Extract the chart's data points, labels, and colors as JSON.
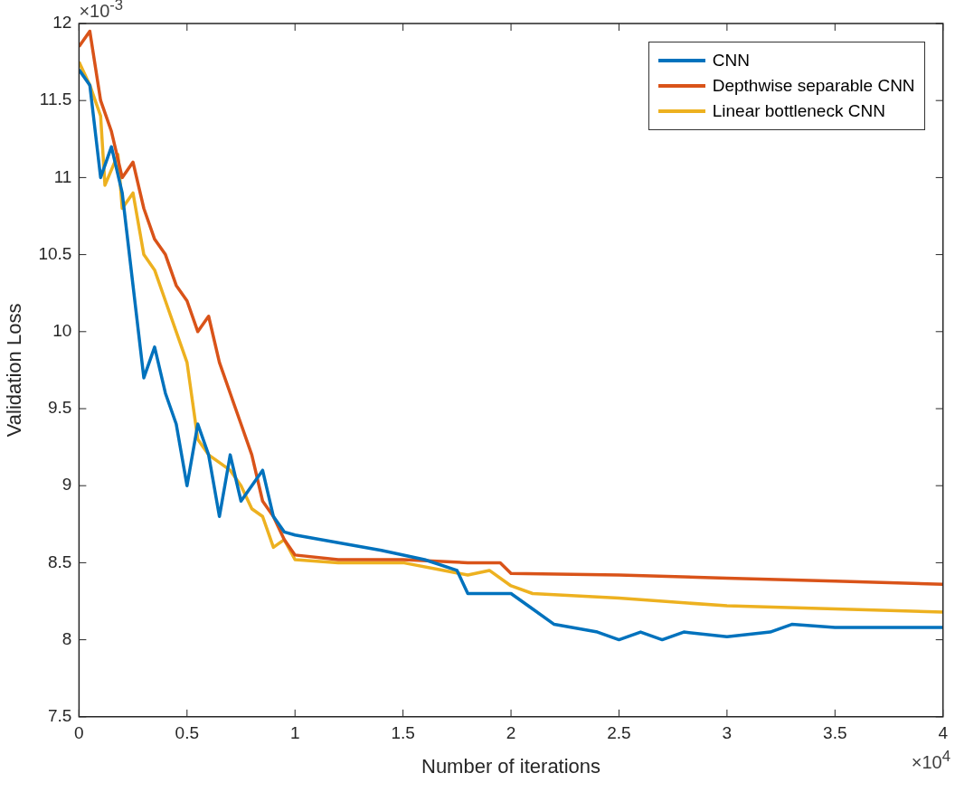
{
  "chart_data": {
    "type": "line",
    "xlabel": "Number of iterations",
    "ylabel": "Validation Loss",
    "annotations": [
      "×10$^{-3}$",
      "×10$^{4}$"
    ],
    "xlim": [
      0,
      4
    ],
    "xticks": [
      0,
      0.5,
      1,
      1.5,
      2,
      2.5,
      3,
      3.5,
      4
    ],
    "ylim": [
      7.5,
      12
    ],
    "yticks": [
      7.5,
      8,
      8.5,
      9,
      9.5,
      10,
      10.5,
      11,
      11.5,
      12
    ],
    "grid": false,
    "legend": "top right",
    "marker": "none",
    "line_style": "solid",
    "series": [
      {
        "name": "CNN",
        "color": "#0072bd",
        "x": [
          0,
          0.05,
          0.1,
          0.15,
          0.2,
          0.25,
          0.3,
          0.35,
          0.4,
          0.45,
          0.5,
          0.55,
          0.6,
          0.65,
          0.7,
          0.75,
          0.8,
          0.85,
          0.9,
          0.95,
          1,
          1.2,
          1.4,
          1.6,
          1.75,
          1.8,
          1.9,
          2,
          2.1,
          2.2,
          2.4,
          2.5,
          2.6,
          2.7,
          2.8,
          3,
          3.2,
          3.3,
          3.5,
          4
        ],
        "values": [
          11.7,
          11.6,
          11,
          11.2,
          10.9,
          10.3,
          9.7,
          9.9,
          9.6,
          9.4,
          9,
          9.4,
          9.2,
          8.8,
          9.2,
          8.9,
          9,
          9.1,
          8.8,
          8.7,
          8.68,
          8.63,
          8.58,
          8.52,
          8.45,
          8.3,
          8.3,
          8.3,
          8.2,
          8.1,
          8.05,
          8,
          8.05,
          8,
          8.05,
          8.02,
          8.05,
          8.1,
          8.08,
          8.08
        ]
      },
      {
        "name": "Depthwise separable CNN",
        "color": "#d95319",
        "x": [
          0,
          0.05,
          0.1,
          0.15,
          0.2,
          0.25,
          0.3,
          0.35,
          0.4,
          0.45,
          0.5,
          0.55,
          0.6,
          0.65,
          0.7,
          0.75,
          0.8,
          0.85,
          0.9,
          0.95,
          1,
          1.2,
          1.5,
          1.8,
          1.95,
          2,
          2.5,
          3,
          3.5,
          4
        ],
        "values": [
          11.85,
          11.95,
          11.5,
          11.3,
          11,
          11.1,
          10.8,
          10.6,
          10.5,
          10.3,
          10.2,
          10,
          10.1,
          9.8,
          9.6,
          9.4,
          9.2,
          8.9,
          8.8,
          8.65,
          8.55,
          8.52,
          8.52,
          8.5,
          8.5,
          8.43,
          8.42,
          8.4,
          8.38,
          8.36
        ]
      },
      {
        "name": "Linear bottleneck CNN",
        "color": "#edb120",
        "x": [
          0,
          0.05,
          0.1,
          0.12,
          0.18,
          0.2,
          0.25,
          0.3,
          0.35,
          0.4,
          0.45,
          0.5,
          0.55,
          0.6,
          0.65,
          0.7,
          0.75,
          0.8,
          0.85,
          0.9,
          0.95,
          1,
          1.2,
          1.5,
          1.8,
          1.9,
          2,
          2.1,
          2.5,
          3,
          3.5,
          4
        ],
        "values": [
          11.75,
          11.6,
          11.4,
          10.95,
          11.15,
          10.8,
          10.9,
          10.5,
          10.4,
          10.2,
          10,
          9.8,
          9.3,
          9.2,
          9.15,
          9.1,
          9,
          8.85,
          8.8,
          8.6,
          8.65,
          8.52,
          8.5,
          8.5,
          8.42,
          8.45,
          8.35,
          8.3,
          8.27,
          8.22,
          8.2,
          8.18
        ]
      }
    ]
  }
}
